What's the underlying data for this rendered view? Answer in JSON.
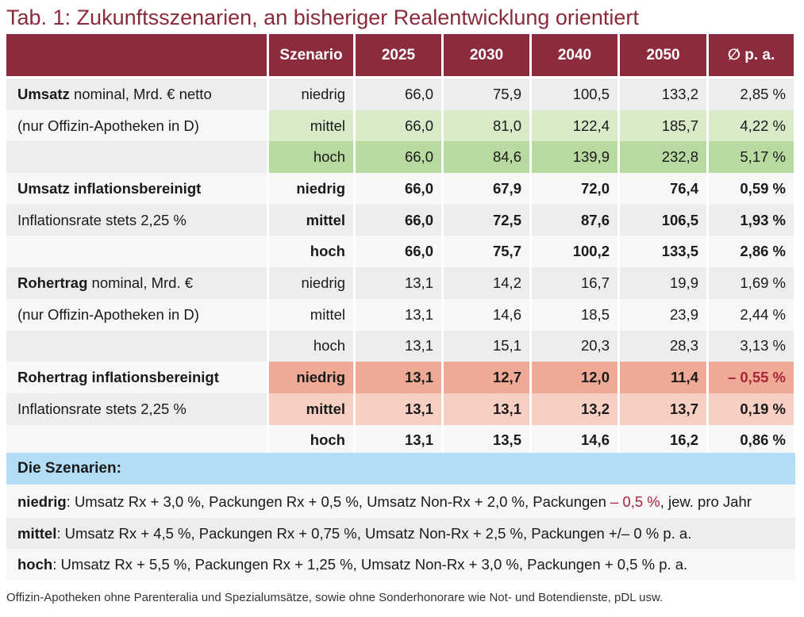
{
  "title": "Tab. 1: Zukunftsszenarien, an bisheriger Realentwicklung orientiert",
  "header": {
    "col0": "",
    "szenario": "Szenario",
    "y2025": "2025",
    "y2030": "2030",
    "y2040": "2040",
    "y2050": "2050",
    "avg": "∅ p. a."
  },
  "rows": [
    {
      "label_bold": "Umsatz",
      "label_rest": " nominal, Mrd. € netto",
      "szenario": "niedrig",
      "v2025": "66,0",
      "v2030": "75,9",
      "v2040": "100,5",
      "v2050": "133,2",
      "avg": "2,85 %"
    },
    {
      "label_bold": "",
      "label_rest": "(nur Offizin-Apotheken in D)",
      "szenario": "mittel",
      "v2025": "66,0",
      "v2030": "81,0",
      "v2040": "122,4",
      "v2050": "185,7",
      "avg": "4,22 %"
    },
    {
      "label_bold": "",
      "label_rest": "",
      "szenario": "hoch",
      "v2025": "66,0",
      "v2030": "84,6",
      "v2040": "139,9",
      "v2050": "232,8",
      "avg": "5,17 %"
    },
    {
      "label_bold": "Umsatz inflationsbereinigt",
      "label_rest": "",
      "szenario": "niedrig",
      "v2025": "66,0",
      "v2030": "67,9",
      "v2040": "72,0",
      "v2050": "76,4",
      "avg": "0,59 %"
    },
    {
      "label_bold": "",
      "label_rest": "Inflationsrate stets 2,25 %",
      "szenario": "mittel",
      "v2025": "66,0",
      "v2030": "72,5",
      "v2040": "87,6",
      "v2050": "106,5",
      "avg": "1,93 %"
    },
    {
      "label_bold": "",
      "label_rest": "",
      "szenario": "hoch",
      "v2025": "66,0",
      "v2030": "75,7",
      "v2040": "100,2",
      "v2050": "133,5",
      "avg": "2,86 %"
    },
    {
      "label_bold": "Rohertrag",
      "label_rest": " nominal, Mrd. €",
      "szenario": "niedrig",
      "v2025": "13,1",
      "v2030": "14,2",
      "v2040": "16,7",
      "v2050": "19,9",
      "avg": "1,69 %"
    },
    {
      "label_bold": "",
      "label_rest": "(nur Offizin-Apotheken in D)",
      "szenario": "mittel",
      "v2025": "13,1",
      "v2030": "14,6",
      "v2040": "18,5",
      "v2050": "23,9",
      "avg": "2,44 %"
    },
    {
      "label_bold": "",
      "label_rest": "",
      "szenario": "hoch",
      "v2025": "13,1",
      "v2030": "15,1",
      "v2040": "20,3",
      "v2050": "28,3",
      "avg": "3,13 %"
    },
    {
      "label_bold": "Rohertrag inflationsbereinigt",
      "label_rest": "",
      "szenario": "niedrig",
      "v2025": "13,1",
      "v2030": "12,7",
      "v2040": "12,0",
      "v2050": "11,4",
      "avg": "– 0,55 %"
    },
    {
      "label_bold": "",
      "label_rest": "Inflationsrate stets 2,25 %",
      "szenario": "mittel",
      "v2025": "13,1",
      "v2030": "13,1",
      "v2040": "13,2",
      "v2050": "13,7",
      "avg": "0,19 %"
    },
    {
      "label_bold": "",
      "label_rest": "",
      "szenario": "hoch",
      "v2025": "13,1",
      "v2030": "13,5",
      "v2040": "14,6",
      "v2050": "16,2",
      "avg": "0,86 %"
    }
  ],
  "szenarien": {
    "heading": "Die Szenarien:",
    "niedrig": {
      "key": "niedrig",
      "text_a": ":  Umsatz Rx + 3,0 %, Packungen Rx + 0,5 %, Umsatz Non-Rx + 2,0 %, Packungen ",
      "text_neg": "– 0,5 %",
      "text_b": ", jew. pro Jahr"
    },
    "mittel": {
      "key": "mittel",
      "text": ":  Umsatz Rx + 4,5 %, Packungen Rx + 0,75 %, Umsatz Non-Rx + 2,5 %, Packungen +/– 0 % p. a."
    },
    "hoch": {
      "key": "hoch",
      "text": ":  Umsatz Rx + 5,5 %, Packungen Rx + 1,25 %, Umsatz Non-Rx + 3,0 %, Packungen + 0,5 % p. a."
    }
  },
  "footnote": "Offizin-Apotheken ohne Parenteralia und Spezialumsätze, sowie ohne Sonderhonorare wie Not- und Botendienste, pDL usw.",
  "colors": {
    "header_bg": "#8b2b3c",
    "title": "#8a2b3a",
    "green_light": "#d8eac7",
    "green_dark": "#b8d9a0",
    "red_dark": "#eeaa95",
    "red_light": "#f8d0c3",
    "blue": "#b3ddf5"
  }
}
